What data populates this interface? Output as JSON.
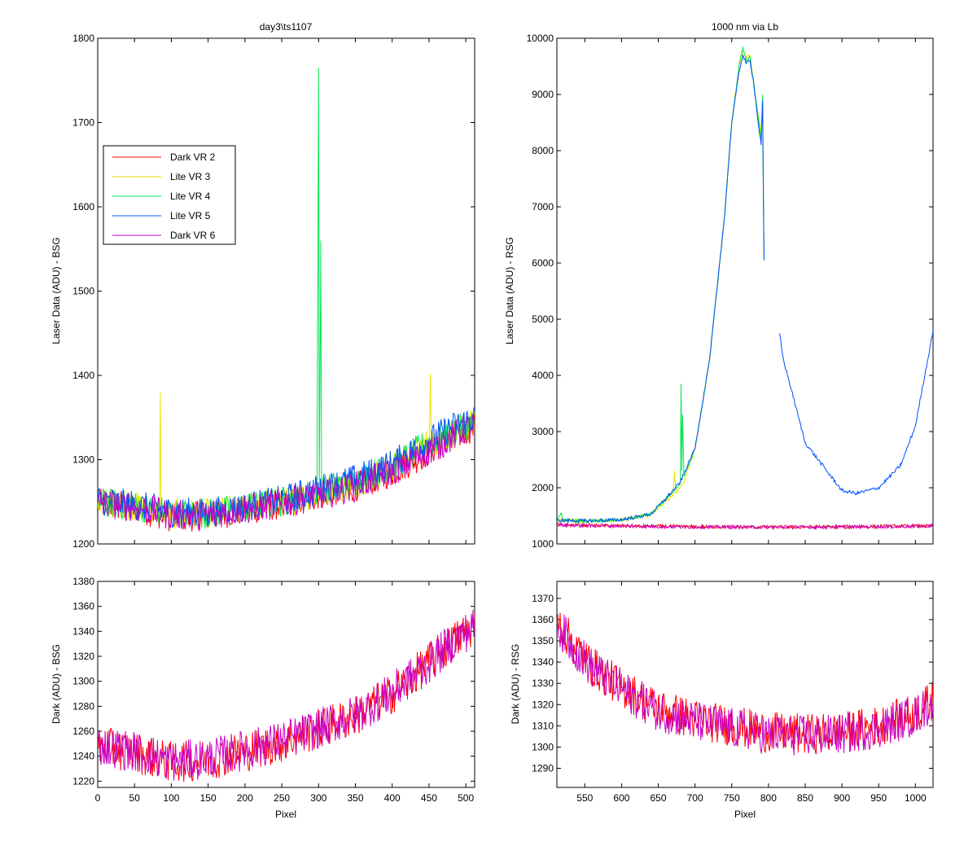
{
  "figure": {
    "background": "#ffffff"
  },
  "chart_data": [
    {
      "id": "tl",
      "type": "line",
      "title": "day3\\ts1107",
      "xlabel": "",
      "ylabel": "Laser Data (ADU) - BSG",
      "xlim": [
        0,
        512
      ],
      "ylim": [
        1200,
        1800
      ],
      "xticks": [
        0,
        50,
        100,
        150,
        200,
        250,
        300,
        350,
        400,
        450,
        500
      ],
      "yticks": [
        1200,
        1300,
        1400,
        1500,
        1600,
        1700,
        1800
      ],
      "show_xticklabels": false,
      "show_yticklabels": true,
      "grid": false,
      "legend": {
        "position": "upper-left",
        "entries": [
          "Dark VR 2",
          "Lite VR 3",
          "Lite VR 4",
          "Lite VR 5",
          "Dark VR 6"
        ]
      },
      "series": [
        {
          "name": "Dark VR 2",
          "color": "#ff0000",
          "x": [
            0,
            50,
            100,
            150,
            200,
            250,
            300,
            350,
            400,
            450,
            480,
            512
          ],
          "y": [
            1248,
            1243,
            1232,
            1233,
            1240,
            1247,
            1258,
            1268,
            1285,
            1310,
            1325,
            1340
          ]
        },
        {
          "name": "Lite VR 3",
          "color": "#e6e600",
          "x": [
            0,
            50,
            84,
            85,
            86,
            100,
            150,
            200,
            250,
            300,
            350,
            400,
            450,
            452,
            453,
            456,
            480,
            512
          ],
          "y": [
            1250,
            1245,
            1240,
            1380,
            1240,
            1235,
            1236,
            1243,
            1250,
            1260,
            1272,
            1292,
            1320,
            1396,
            1325,
            1322,
            1330,
            1345
          ]
        },
        {
          "name": "Lite VR 4",
          "color": "#00e650",
          "x": [
            0,
            50,
            100,
            150,
            200,
            250,
            298,
            300,
            301,
            303,
            304,
            306,
            350,
            400,
            450,
            480,
            512
          ],
          "y": [
            1250,
            1245,
            1237,
            1236,
            1243,
            1250,
            1262,
            1765,
            1270,
            1560,
            1268,
            1265,
            1275,
            1292,
            1320,
            1332,
            1345
          ]
        },
        {
          "name": "Lite VR 5",
          "color": "#0050ff",
          "x": [
            0,
            50,
            100,
            150,
            200,
            250,
            300,
            350,
            400,
            450,
            480,
            512
          ],
          "y": [
            1252,
            1246,
            1238,
            1237,
            1244,
            1252,
            1265,
            1277,
            1295,
            1322,
            1338,
            1350
          ]
        },
        {
          "name": "Dark VR 6",
          "color": "#c800c8",
          "x": [
            0,
            50,
            100,
            150,
            200,
            250,
            300,
            350,
            400,
            450,
            480,
            512
          ],
          "y": [
            1249,
            1244,
            1234,
            1235,
            1241,
            1248,
            1258,
            1268,
            1286,
            1310,
            1326,
            1342
          ]
        }
      ]
    },
    {
      "id": "tr",
      "type": "line",
      "title": "1000 nm via Lb",
      "xlabel": "",
      "ylabel": "Laser Data (ADU) - RSG",
      "xlim": [
        512,
        1024
      ],
      "ylim": [
        1000,
        10000
      ],
      "xticks": [
        550,
        600,
        650,
        700,
        750,
        800,
        850,
        900,
        950,
        1000
      ],
      "yticks": [
        1000,
        2000,
        3000,
        4000,
        5000,
        6000,
        7000,
        8000,
        9000,
        10000
      ],
      "show_xticklabels": false,
      "show_yticklabels": true,
      "grid": false,
      "series": [
        {
          "name": "Dark VR 2",
          "color": "#ff0000",
          "x": [
            512,
            600,
            700,
            800,
            900,
            1024
          ],
          "y": [
            1340,
            1320,
            1305,
            1300,
            1305,
            1320
          ]
        },
        {
          "name": "Lite VR 3",
          "color": "#e6e600",
          "x": [
            512,
            550,
            600,
            640,
            655,
            670,
            672,
            674,
            685,
            700,
            720,
            740,
            750,
            760,
            765,
            770,
            775,
            780,
            785,
            790,
            792,
            793,
            794
          ],
          "y": [
            1420,
            1410,
            1430,
            1530,
            1700,
            1850,
            2300,
            1900,
            2100,
            2700,
            4300,
            6800,
            8500,
            9500,
            9750,
            9650,
            9700,
            9200,
            8700,
            8300,
            8800,
            7200,
            6050
          ]
        },
        {
          "name": "Lite VR 4",
          "color": "#00e650",
          "x": [
            512,
            518,
            520,
            550,
            600,
            640,
            660,
            675,
            680,
            681,
            682,
            683,
            685,
            700,
            720,
            740,
            750,
            760,
            765,
            770,
            775,
            780,
            785,
            790,
            792,
            793,
            794
          ],
          "y": [
            1420,
            1550,
            1420,
            1410,
            1430,
            1530,
            1800,
            2000,
            2100,
            3850,
            2300,
            3300,
            2200,
            2700,
            4300,
            6800,
            8500,
            9500,
            9850,
            9600,
            9650,
            9200,
            8700,
            8200,
            9000,
            7200,
            6050
          ]
        },
        {
          "name": "Lite VR 5",
          "color": "#0050ff",
          "x": [
            512,
            550,
            600,
            640,
            660,
            680,
            700,
            720,
            740,
            750,
            760,
            765,
            770,
            775,
            780,
            785,
            790,
            792,
            793,
            794,
            null,
            815,
            820,
            850,
            900,
            920,
            950,
            980,
            1000,
            1024
          ],
          "y": [
            1420,
            1410,
            1430,
            1530,
            1800,
            2100,
            2700,
            4300,
            6800,
            8500,
            9400,
            9700,
            9550,
            9600,
            9200,
            8600,
            8100,
            8900,
            7200,
            6050,
            null,
            4750,
            4300,
            2800,
            1950,
            1900,
            2000,
            2400,
            3100,
            4800
          ]
        },
        {
          "name": "Dark VR 6",
          "color": "#c800c8",
          "x": [
            512,
            600,
            700,
            800,
            900,
            1024
          ],
          "y": [
            1335,
            1318,
            1302,
            1298,
            1302,
            1318
          ]
        }
      ]
    },
    {
      "id": "bl",
      "type": "line",
      "title": "",
      "xlabel": "Pixel",
      "ylabel": "Dark (ADU) - BSG",
      "xlim": [
        0,
        512
      ],
      "ylim": [
        1215,
        1380
      ],
      "xticks": [
        0,
        50,
        100,
        150,
        200,
        250,
        300,
        350,
        400,
        450,
        500
      ],
      "yticks": [
        1220,
        1240,
        1260,
        1280,
        1300,
        1320,
        1340,
        1360,
        1380
      ],
      "show_xticklabels": true,
      "show_yticklabels": true,
      "grid": false,
      "series": [
        {
          "name": "Dark VR 2",
          "color": "#ff0000",
          "x": [
            0,
            50,
            100,
            150,
            200,
            250,
            300,
            350,
            400,
            450,
            480,
            512
          ],
          "y": [
            1248,
            1243,
            1235,
            1237,
            1244,
            1251,
            1262,
            1272,
            1290,
            1315,
            1330,
            1345
          ]
        },
        {
          "name": "Dark VR 6",
          "color": "#c800c8",
          "x": [
            0,
            50,
            100,
            150,
            200,
            250,
            300,
            350,
            400,
            450,
            480,
            512
          ],
          "y": [
            1249,
            1244,
            1236,
            1238,
            1245,
            1252,
            1262,
            1273,
            1291,
            1314,
            1331,
            1344
          ]
        }
      ]
    },
    {
      "id": "br",
      "type": "line",
      "title": "",
      "xlabel": "Pixel",
      "ylabel": "Dark (ADU) - RSG",
      "xlim": [
        512,
        1024
      ],
      "ylim": [
        1281,
        1378
      ],
      "xticks": [
        550,
        600,
        650,
        700,
        750,
        800,
        850,
        900,
        950,
        1000
      ],
      "yticks": [
        1290,
        1300,
        1310,
        1320,
        1330,
        1340,
        1350,
        1360,
        1370
      ],
      "show_xticklabels": true,
      "show_yticklabels": true,
      "grid": false,
      "series": [
        {
          "name": "Dark VR 2",
          "color": "#ff0000",
          "x": [
            512,
            530,
            560,
            600,
            650,
            700,
            750,
            800,
            850,
            900,
            950,
            1000,
            1024
          ],
          "y": [
            1360,
            1350,
            1338,
            1328,
            1318,
            1313,
            1310,
            1307,
            1306,
            1307,
            1310,
            1316,
            1322
          ]
        },
        {
          "name": "Dark VR 6",
          "color": "#c800c8",
          "x": [
            512,
            530,
            560,
            600,
            650,
            700,
            750,
            800,
            850,
            900,
            950,
            1000,
            1024
          ],
          "y": [
            1358,
            1349,
            1337,
            1327,
            1317,
            1312,
            1309,
            1306,
            1305,
            1306,
            1309,
            1315,
            1321
          ]
        }
      ]
    }
  ]
}
